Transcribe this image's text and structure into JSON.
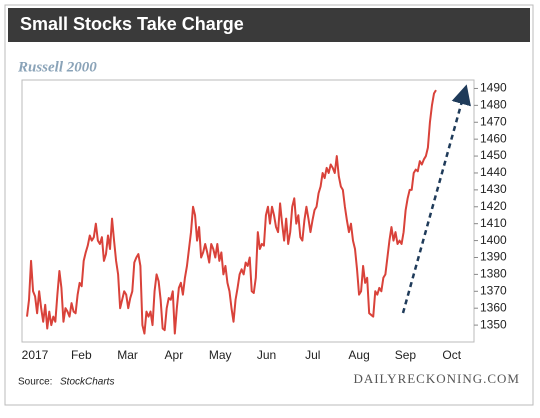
{
  "chart_data": {
    "type": "line",
    "title": "Small Stocks Take Charge",
    "subtitle": "Russell 2000",
    "x_labels": [
      "2017",
      "Feb",
      "Mar",
      "Apr",
      "May",
      "Jun",
      "Jul",
      "Aug",
      "Sep",
      "Oct"
    ],
    "color": "#d9423a",
    "ylim": [
      1340,
      1495
    ],
    "yticks": [
      1350,
      1360,
      1370,
      1380,
      1390,
      1400,
      1410,
      1420,
      1430,
      1440,
      1450,
      1460,
      1470,
      1480,
      1490
    ],
    "grid": false,
    "source_label": "Source:",
    "source": "StockCharts",
    "credit": "DAILYRECKONING.COM",
    "values": [
      1355,
      1365,
      1388,
      1370,
      1367,
      1357,
      1370,
      1360,
      1352,
      1362,
      1348,
      1358,
      1350,
      1355,
      1352,
      1368,
      1382,
      1372,
      1352,
      1360,
      1358,
      1355,
      1363,
      1358,
      1357,
      1368,
      1375,
      1373,
      1388,
      1393,
      1397,
      1403,
      1400,
      1402,
      1410,
      1400,
      1398,
      1402,
      1388,
      1392,
      1403,
      1395,
      1413,
      1400,
      1388,
      1380,
      1360,
      1365,
      1370,
      1368,
      1360,
      1366,
      1370,
      1387,
      1390,
      1392,
      1385,
      1350,
      1345,
      1358,
      1355,
      1358,
      1350,
      1370,
      1380,
      1376,
      1365,
      1348,
      1347,
      1360,
      1366,
      1365,
      1370,
      1345,
      1360,
      1372,
      1375,
      1368,
      1378,
      1385,
      1395,
      1405,
      1420,
      1415,
      1400,
      1408,
      1390,
      1393,
      1398,
      1393,
      1387,
      1398,
      1395,
      1390,
      1398,
      1388,
      1393,
      1380,
      1385,
      1375,
      1370,
      1360,
      1352,
      1365,
      1372,
      1380,
      1383,
      1380,
      1387,
      1385,
      1390,
      1370,
      1369,
      1378,
      1405,
      1395,
      1398,
      1397,
      1415,
      1420,
      1410,
      1420,
      1415,
      1408,
      1405,
      1422,
      1410,
      1400,
      1413,
      1398,
      1405,
      1420,
      1425,
      1410,
      1415,
      1402,
      1400,
      1412,
      1420,
      1413,
      1405,
      1412,
      1418,
      1420,
      1428,
      1432,
      1440,
      1437,
      1443,
      1440,
      1445,
      1443,
      1440,
      1450,
      1438,
      1432,
      1430,
      1420,
      1412,
      1405,
      1410,
      1400,
      1395,
      1383,
      1368,
      1370,
      1385,
      1375,
      1378,
      1357,
      1356,
      1355,
      1370,
      1368,
      1372,
      1370,
      1378,
      1380,
      1390,
      1400,
      1408,
      1400,
      1405,
      1398,
      1400,
      1398,
      1405,
      1418,
      1425,
      1430,
      1430,
      1440,
      1442,
      1441,
      1447,
      1445,
      1448,
      1450,
      1455,
      1470,
      1480,
      1487,
      1489
    ]
  }
}
